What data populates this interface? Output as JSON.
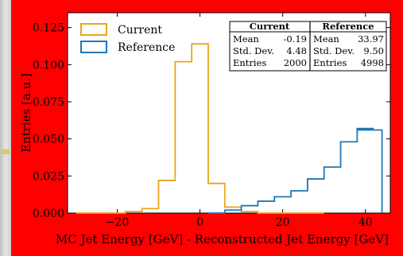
{
  "chart_data": {
    "type": "bar",
    "histtype": "step",
    "xlabel": "MC Jet Energy [GeV] - Reconstructed Jet Energy [GeV]",
    "ylabel": "Entries [a.u.]",
    "xlim": [
      -32,
      46
    ],
    "ylim": [
      0,
      0.135
    ],
    "xticks": [
      -20,
      0,
      20,
      40
    ],
    "yticks": [
      0.0,
      0.025,
      0.05,
      0.075,
      0.1,
      0.125
    ],
    "ytick_labels": [
      "0.000",
      "0.025",
      "0.050",
      "0.075",
      "0.100",
      "0.125"
    ],
    "xtick_labels": [
      "−20",
      "0",
      "20",
      "40"
    ],
    "legend_position": "top-left",
    "series": [
      {
        "name": "Current",
        "color": "#e8a51c",
        "bins": [
          -30,
          -26,
          -22,
          -18,
          -14,
          -10,
          -6,
          -2,
          2,
          6,
          10,
          14,
          18,
          22,
          26,
          30
        ],
        "values": [
          0.0,
          0.0,
          0.0,
          0.001,
          0.003,
          0.022,
          0.102,
          0.114,
          0.02,
          0.004,
          0.001,
          0.0,
          0.0,
          0.0,
          0.0
        ]
      },
      {
        "name": "Reference",
        "color": "#1f77b4",
        "bins": [
          2,
          6,
          10,
          14,
          18,
          22,
          26,
          30,
          34,
          38,
          42
        ],
        "values": [
          0.0,
          0.002,
          0.005,
          0.008,
          0.011,
          0.015,
          0.023,
          0.031,
          0.048,
          0.057
        ],
        "x_extra": [
          {
            "x0": 38,
            "x1": 44,
            "value": 0.056
          }
        ]
      }
    ],
    "stats": {
      "headers": [
        "Current",
        "Reference"
      ],
      "rows": [
        {
          "label": "Mean",
          "current": "-0.19",
          "reference": "33.97"
        },
        {
          "label": "Std. Dev.",
          "current": "4.48",
          "reference": "9.50"
        },
        {
          "label": "Entries",
          "current": "2000",
          "reference": "4998"
        }
      ]
    }
  }
}
